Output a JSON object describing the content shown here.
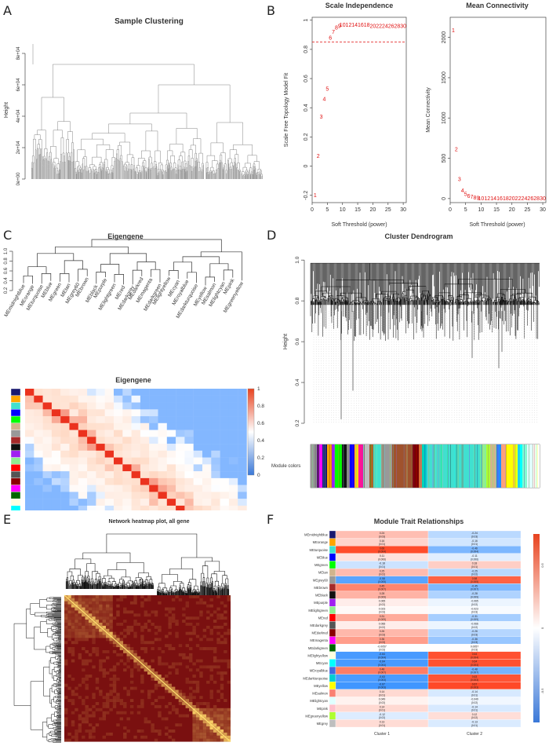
{
  "figure_labels": [
    "A",
    "B",
    "C",
    "D",
    "E",
    "F"
  ],
  "colors": {
    "scatter_point": "#e01010",
    "cutoff_line": "#e01010",
    "dendro_gray": "#777777",
    "dendro_black": "#111111",
    "heat_neg": "#3a78d8",
    "heat_pos": "#e8431f",
    "tom_dark": "#7a1010",
    "tom_light": "#ffe070"
  },
  "chart_data": [
    {
      "id": "A",
      "type": "dendrogram",
      "title": "Sample Clustering",
      "ylabel": "Height",
      "yticks": [
        "0e+00",
        "2e+04",
        "4e+04",
        "6e+04",
        "8e+04"
      ],
      "ylim": [
        0,
        90000
      ]
    },
    {
      "id": "B1",
      "type": "scatter",
      "title": "Scale Independence",
      "xlabel": "Soft Threshold (power)",
      "ylabel": "Scale Free Topology Model Fit",
      "xlim": [
        0,
        31
      ],
      "ylim": [
        -0.25,
        1.02
      ],
      "xticks": [
        0,
        5,
        10,
        15,
        20,
        25,
        30
      ],
      "yticks": [
        -0.2,
        0.0,
        0.2,
        0.4,
        0.6,
        0.8,
        1.0
      ],
      "cutoff": 0.85,
      "labels": [
        "1",
        "2",
        "3",
        "4",
        "5",
        "6",
        "7",
        "8",
        "9",
        "10",
        "12",
        "14",
        "16",
        "18",
        "20",
        "22",
        "24",
        "26",
        "28",
        "30"
      ],
      "x": [
        1,
        2,
        3,
        4,
        5,
        6,
        7,
        8,
        9,
        10,
        12,
        14,
        16,
        18,
        20,
        22,
        24,
        26,
        28,
        30
      ],
      "y": [
        -0.2,
        0.07,
        0.34,
        0.46,
        0.53,
        0.88,
        0.92,
        0.95,
        0.96,
        0.97,
        0.97,
        0.97,
        0.97,
        0.97,
        0.96,
        0.96,
        0.96,
        0.96,
        0.96,
        0.96
      ]
    },
    {
      "id": "B2",
      "type": "scatter",
      "title": "Mean Connectivity",
      "xlabel": "Soft Threshold (power)",
      "ylabel": "Mean Connectivity",
      "xlim": [
        0,
        31
      ],
      "ylim": [
        -50,
        2250
      ],
      "xticks": [
        0,
        5,
        10,
        15,
        20,
        25,
        30
      ],
      "yticks": [
        0,
        500,
        1000,
        1500,
        2000
      ],
      "labels": [
        "1",
        "2",
        "3",
        "4",
        "5",
        "6",
        "7",
        "8",
        "9",
        "10",
        "12",
        "14",
        "16",
        "18",
        "20",
        "22",
        "24",
        "26",
        "28",
        "30"
      ],
      "x": [
        1,
        2,
        3,
        4,
        5,
        6,
        7,
        8,
        9,
        10,
        12,
        14,
        16,
        18,
        20,
        22,
        24,
        26,
        28,
        30
      ],
      "y": [
        2090,
        615,
        240,
        100,
        55,
        35,
        25,
        15,
        10,
        5,
        3,
        2,
        2,
        2,
        2,
        2,
        2,
        2,
        2,
        2
      ]
    },
    {
      "id": "C1",
      "type": "dendrogram",
      "title": "Eigengene",
      "yticks": [
        "0.2",
        "0.4",
        "0.6",
        "0.8",
        "1.0"
      ],
      "leaves": [
        "MEmidnightblue",
        "MEorange",
        "MEturquoise",
        "MEblue",
        "MEgreen",
        "MEtan",
        "MEgrey60",
        "MEbrown",
        "MEblack",
        "MEpurple",
        "MElightgreen",
        "MEred",
        "MEdarkgrey",
        "MEdarkred",
        "MEmagenta",
        "MEdarkgreen",
        "MElightyellow",
        "MEcyan",
        "MEroyalblue",
        "MEdarkturquoise",
        "MEyellow",
        "MEsalmon",
        "MElightcyan",
        "MEpink",
        "MEgreenyellow"
      ]
    },
    {
      "id": "C2",
      "type": "heatmap",
      "title": "Eigengene",
      "legend_ticks": [
        "0",
        "0.2",
        "0.4",
        "0.6",
        "0.8",
        "1"
      ]
    },
    {
      "id": "D",
      "type": "dendrogram",
      "title": "Cluster Dendrogram",
      "ylabel": "Height",
      "yticks": [
        "0.2",
        "0.4",
        "0.6",
        "0.8",
        "1.0"
      ],
      "ylim": [
        0.15,
        1.02
      ],
      "color_bar_label": "Module colors"
    },
    {
      "id": "E",
      "type": "heatmap",
      "title": "Network heatmap plot, all gene"
    },
    {
      "id": "F",
      "type": "heatmap",
      "title": "Module Trait Relationships",
      "categories": [
        "Cluster 1",
        "Cluster 2"
      ],
      "legend_ticks": [
        "-0.5",
        "0",
        "0.5"
      ],
      "rows": [
        "MEmidnightblue",
        "MEorange",
        "MEturquoise",
        "MEblue",
        "MEgreen",
        "MEtan",
        "MEgrey60",
        "MEbrown",
        "MEblack",
        "MEpurple",
        "MElightgreen",
        "MEred",
        "MEdarkgrey",
        "MEdarkred",
        "MEmagenta",
        "MEdarkgreen",
        "MElightyellow",
        "MEcyan",
        "MEroyalblue",
        "MEdarkturquoise",
        "MEyellow",
        "MEsalmon",
        "MElightcyan",
        "MEpink",
        "MEgreenyellow",
        "MEgrey"
      ],
      "row_colors": [
        "#191970",
        "#ffa500",
        "#40e0d0",
        "#0000ff",
        "#00ff00",
        "#d2b48c",
        "#999999",
        "#a52a2a",
        "#111111",
        "#a020f0",
        "#90ee90",
        "#ff0000",
        "#555555",
        "#8b0000",
        "#ff00ff",
        "#006400",
        "#ffffe0",
        "#00ffff",
        "#4169e1",
        "#00ced1",
        "#ffff00",
        "#fa8072",
        "#e0ffff",
        "#ffc0cb",
        "#adff2f",
        "#bebebe"
      ],
      "values": [
        [
          0.24,
          -0.24
        ],
        [
          0.16,
          -0.16
        ],
        [
          0.66,
          -0.46
        ],
        [
          0.11,
          -0.11
        ],
        [
          -0.18,
          0.18
        ],
        [
          0.25,
          -0.25
        ],
        [
          -0.58,
          0.58
        ],
        [
          0.45,
          -0.45
        ],
        [
          0.28,
          -0.28
        ],
        [
          0.065,
          -0.065
        ],
        [
          0.023,
          -0.023
        ],
        [
          0.31,
          -0.31
        ],
        [
          0.066,
          -0.066
        ],
        [
          0.26,
          -0.26
        ],
        [
          0.36,
          -0.36
        ],
        [
          -0.0057,
          0.0057
        ],
        [
          -0.64,
          0.64
        ],
        [
          -0.64,
          0.64
        ],
        [
          0.48,
          -0.48
        ],
        [
          -0.63,
          0.63
        ],
        [
          -0.67,
          0.67
        ],
        [
          0.14,
          -0.14
        ],
        [
          0.049,
          -0.049
        ],
        [
          0.14,
          -0.14
        ],
        [
          -0.12,
          0.12
        ],
        [
          0.13,
          -0.13
        ]
      ],
      "pvalues": [
        [
          "(0.03)",
          "(0.03)"
        ],
        [
          "(0.01)",
          "(0.01)"
        ],
        [
          "(0.004)",
          "(0.004)"
        ],
        [
          "(0.006)",
          "(0.006)"
        ],
        [
          "(0.01)",
          "(0.01)"
        ],
        [
          "(0.02)",
          "(0.02)"
        ],
        [
          "(0.005)",
          "(0.005)"
        ],
        [
          "(0.007)",
          "(0.007)"
        ],
        [
          "(0.009)",
          "(0.009)"
        ],
        [
          "(0.02)",
          "(0.02)"
        ],
        [
          "(0.03)",
          "(0.03)"
        ],
        [
          "(0.009)",
          "(0.009)"
        ],
        [
          "(0.02)",
          "(0.02)"
        ],
        [
          "(0.03)",
          "(0.03)"
        ],
        [
          "(0.03)",
          "(0.03)"
        ],
        [
          "(0.03)",
          "(0.03)"
        ],
        [
          "(0.004)",
          "(0.004)"
        ],
        [
          "(0.004)",
          "(0.004)"
        ],
        [
          "(0.007)",
          "(0.007)"
        ],
        [
          "(0.003)",
          "(0.003)"
        ],
        [
          "(0.003)",
          "(0.003)"
        ],
        [
          "(0.01)",
          "(0.01)"
        ],
        [
          "(0.02)",
          "(0.02)"
        ],
        [
          "(0.01)",
          "(0.01)"
        ],
        [
          "(0.02)",
          "(0.02)"
        ],
        [
          "(0.01)",
          "(0.01)"
        ]
      ]
    }
  ]
}
